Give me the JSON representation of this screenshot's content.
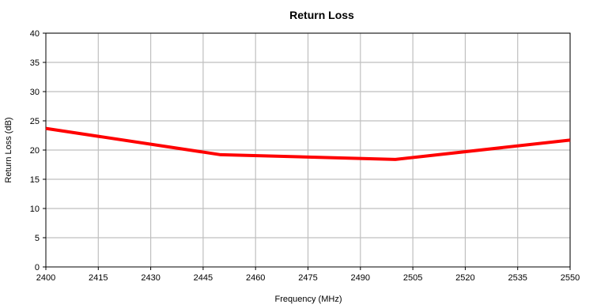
{
  "chart_data": {
    "type": "line",
    "title": "Return Loss",
    "xlabel": "Frequency (MHz)",
    "ylabel": "Return Loss (dB)",
    "xlim": [
      2400,
      2550
    ],
    "ylim": [
      0,
      40
    ],
    "x_ticks": [
      2400,
      2415,
      2430,
      2445,
      2460,
      2475,
      2490,
      2505,
      2520,
      2535,
      2550
    ],
    "y_ticks": [
      0,
      5,
      10,
      15,
      20,
      25,
      30,
      35,
      40
    ],
    "grid": true,
    "legend": "none",
    "series": [
      {
        "color": "#ff0000",
        "points": [
          {
            "x": 2400,
            "y": 23.7
          },
          {
            "x": 2450,
            "y": 19.2
          },
          {
            "x": 2500,
            "y": 18.4
          },
          {
            "x": 2550,
            "y": 21.7
          }
        ]
      }
    ],
    "colors": {
      "grid": "#bfbfbf",
      "axis": "#000000",
      "line": "#ff0000"
    }
  }
}
